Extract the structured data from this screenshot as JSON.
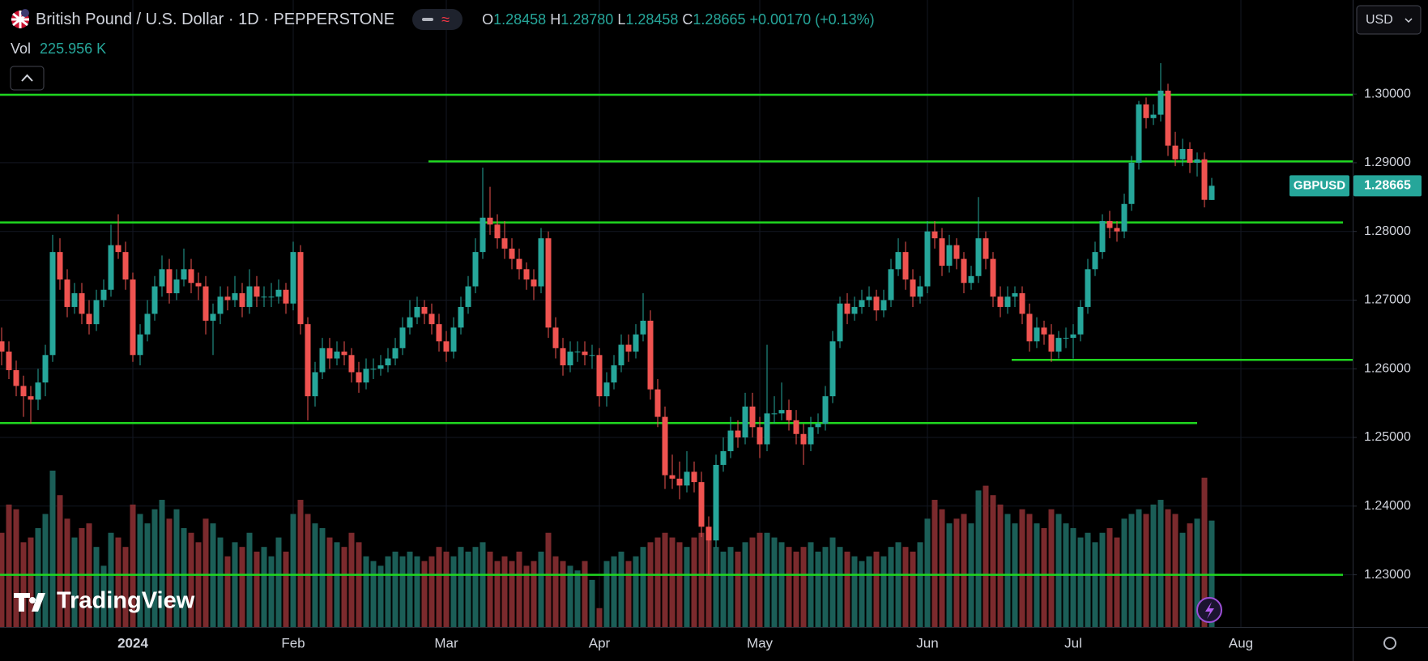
{
  "header": {
    "symbol": "British Pound / U.S. Dollar · 1D · PEPPERSTONE",
    "open_key": "O",
    "open": "1.28458",
    "high_key": "H",
    "high": "1.28780",
    "low_key": "L",
    "low": "1.28458",
    "close_key": "C",
    "close": "1.28665",
    "change": "+0.00170 (+0.13%)",
    "vol_key": "Vol",
    "currency": "USD",
    "ticker": "GBPUSD",
    "brand": "TradingView"
  },
  "chart_data": {
    "type": "candlestick",
    "up_color": "#26a69a",
    "down_color": "#ef5350",
    "volume_up_color": "#1b5e57",
    "volume_down_color": "#7b2a2d",
    "level_color": "#1fd61f",
    "grid": true,
    "ylim": [
      1.2224,
      1.3137
    ],
    "yticks": [
      {
        "value": 1.23,
        "label": "1.23000"
      },
      {
        "value": 1.24,
        "label": "1.24000"
      },
      {
        "value": 1.25,
        "label": "1.25000"
      },
      {
        "value": 1.26,
        "label": "1.26000"
      },
      {
        "value": 1.27,
        "label": "1.27000"
      },
      {
        "value": 1.28,
        "label": "1.28000"
      },
      {
        "value": 1.29,
        "label": "1.29000"
      },
      {
        "value": 1.3,
        "label": "1.30000"
      }
    ],
    "xticks": [
      {
        "value": 18,
        "label": "2024"
      },
      {
        "value": 40,
        "label": "Feb"
      },
      {
        "value": 61,
        "label": "Mar"
      },
      {
        "value": 82,
        "label": "Apr"
      },
      {
        "value": 104,
        "label": "May"
      },
      {
        "value": 127,
        "label": "Jun"
      },
      {
        "value": 147,
        "label": "Jul"
      },
      {
        "value": 170,
        "label": "Aug"
      }
    ],
    "volume_label": "225.956 K",
    "levels": [
      {
        "value": 1.2999,
        "from": 0,
        "to": 186
      },
      {
        "value": 1.2902,
        "from": 59,
        "to": 186
      },
      {
        "value": 1.2813,
        "from": 0,
        "to": 184
      },
      {
        "value": 1.2613,
        "from": 139,
        "to": 186
      },
      {
        "value": 1.2521,
        "from": 0,
        "to": 164
      },
      {
        "value": 1.23,
        "from": 0,
        "to": 184
      }
    ],
    "candles": [
      [
        1.264,
        1.266,
        1.2605,
        1.2625,
        200
      ],
      [
        1.2625,
        1.264,
        1.2585,
        1.2598,
        260
      ],
      [
        1.2598,
        1.2612,
        1.256,
        1.2575,
        250
      ],
      [
        1.2575,
        1.259,
        1.253,
        1.256,
        180
      ],
      [
        1.256,
        1.2575,
        1.252,
        1.2555,
        190
      ],
      [
        1.2555,
        1.26,
        1.254,
        1.258,
        210
      ],
      [
        1.258,
        1.2635,
        1.256,
        1.262,
        240
      ],
      [
        1.262,
        1.2795,
        1.261,
        1.277,
        332
      ],
      [
        1.277,
        1.279,
        1.2715,
        1.273,
        280
      ],
      [
        1.273,
        1.2745,
        1.2675,
        1.269,
        230
      ],
      [
        1.269,
        1.2725,
        1.268,
        1.271,
        190
      ],
      [
        1.271,
        1.2725,
        1.2665,
        1.268,
        210
      ],
      [
        1.268,
        1.27,
        1.265,
        1.2665,
        220
      ],
      [
        1.2665,
        1.2715,
        1.2655,
        1.27,
        170
      ],
      [
        1.27,
        1.273,
        1.269,
        1.2715,
        130
      ],
      [
        1.2715,
        1.281,
        1.2705,
        1.278,
        200
      ],
      [
        1.278,
        1.2825,
        1.276,
        1.277,
        190
      ],
      [
        1.277,
        1.2785,
        1.2715,
        1.273,
        170
      ],
      [
        1.273,
        1.274,
        1.261,
        1.262,
        260
      ],
      [
        1.262,
        1.2665,
        1.2605,
        1.265,
        240
      ],
      [
        1.265,
        1.27,
        1.264,
        1.268,
        220
      ],
      [
        1.268,
        1.2735,
        1.267,
        1.272,
        250
      ],
      [
        1.272,
        1.2765,
        1.2705,
        1.2745,
        270
      ],
      [
        1.2745,
        1.276,
        1.2695,
        1.271,
        230
      ],
      [
        1.271,
        1.2745,
        1.27,
        1.273,
        250
      ],
      [
        1.273,
        1.2775,
        1.272,
        1.2745,
        210
      ],
      [
        1.2745,
        1.276,
        1.271,
        1.2725,
        200
      ],
      [
        1.2725,
        1.274,
        1.27,
        1.272,
        180
      ],
      [
        1.272,
        1.2735,
        1.265,
        1.267,
        230
      ],
      [
        1.267,
        1.2695,
        1.262,
        1.268,
        220
      ],
      [
        1.268,
        1.272,
        1.2665,
        1.2705,
        190
      ],
      [
        1.2705,
        1.272,
        1.2685,
        1.27,
        150
      ],
      [
        1.27,
        1.2735,
        1.269,
        1.271,
        180
      ],
      [
        1.271,
        1.2725,
        1.2675,
        1.269,
        170
      ],
      [
        1.269,
        1.2745,
        1.268,
        1.272,
        200
      ],
      [
        1.272,
        1.2735,
        1.269,
        1.2705,
        160
      ],
      [
        1.2705,
        1.272,
        1.269,
        1.2705,
        170
      ],
      [
        1.2705,
        1.2725,
        1.269,
        1.2705,
        150
      ],
      [
        1.2705,
        1.273,
        1.2695,
        1.2715,
        190
      ],
      [
        1.2715,
        1.2725,
        1.268,
        1.2695,
        160
      ],
      [
        1.2695,
        1.2785,
        1.2685,
        1.277,
        240
      ],
      [
        1.277,
        1.278,
        1.265,
        1.2665,
        270
      ],
      [
        1.2665,
        1.2675,
        1.2525,
        1.256,
        240
      ],
      [
        1.256,
        1.261,
        1.2545,
        1.2595,
        220
      ],
      [
        1.2595,
        1.2645,
        1.2585,
        1.263,
        210
      ],
      [
        1.263,
        1.2645,
        1.26,
        1.2615,
        190
      ],
      [
        1.2615,
        1.264,
        1.2605,
        1.2625,
        180
      ],
      [
        1.2625,
        1.264,
        1.2605,
        1.262,
        170
      ],
      [
        1.262,
        1.263,
        1.258,
        1.2595,
        200
      ],
      [
        1.2595,
        1.261,
        1.2565,
        1.258,
        180
      ],
      [
        1.258,
        1.2615,
        1.257,
        1.26,
        150
      ],
      [
        1.26,
        1.2615,
        1.2585,
        1.26,
        140
      ],
      [
        1.26,
        1.262,
        1.259,
        1.2605,
        130
      ],
      [
        1.2605,
        1.263,
        1.2595,
        1.2615,
        150
      ],
      [
        1.2615,
        1.2645,
        1.2605,
        1.263,
        160
      ],
      [
        1.263,
        1.2675,
        1.262,
        1.266,
        150
      ],
      [
        1.266,
        1.27,
        1.265,
        1.2675,
        160
      ],
      [
        1.2675,
        1.2705,
        1.2665,
        1.269,
        150
      ],
      [
        1.269,
        1.27,
        1.2665,
        1.268,
        140
      ],
      [
        1.268,
        1.2695,
        1.265,
        1.2665,
        150
      ],
      [
        1.2665,
        1.268,
        1.2625,
        1.264,
        170
      ],
      [
        1.264,
        1.2655,
        1.261,
        1.2625,
        160
      ],
      [
        1.2625,
        1.2675,
        1.2615,
        1.266,
        150
      ],
      [
        1.266,
        1.2705,
        1.265,
        1.269,
        170
      ],
      [
        1.269,
        1.2735,
        1.268,
        1.272,
        160
      ],
      [
        1.272,
        1.279,
        1.271,
        1.277,
        170
      ],
      [
        1.277,
        1.2893,
        1.276,
        1.282,
        180
      ],
      [
        1.282,
        1.2865,
        1.2795,
        1.281,
        160
      ],
      [
        1.281,
        1.2825,
        1.2775,
        1.279,
        140
      ],
      [
        1.279,
        1.2815,
        1.276,
        1.2775,
        150
      ],
      [
        1.2775,
        1.279,
        1.2745,
        1.276,
        140
      ],
      [
        1.276,
        1.2775,
        1.273,
        1.2745,
        160
      ],
      [
        1.2745,
        1.2755,
        1.2715,
        1.273,
        130
      ],
      [
        1.273,
        1.2745,
        1.27,
        1.272,
        140
      ],
      [
        1.272,
        1.2805,
        1.271,
        1.279,
        160
      ],
      [
        1.279,
        1.28,
        1.2645,
        1.266,
        200
      ],
      [
        1.266,
        1.2675,
        1.2615,
        1.263,
        150
      ],
      [
        1.263,
        1.2645,
        1.259,
        1.2605,
        140
      ],
      [
        1.2605,
        1.264,
        1.2595,
        1.2625,
        130
      ],
      [
        1.2625,
        1.264,
        1.261,
        1.2625,
        120
      ],
      [
        1.2625,
        1.264,
        1.2605,
        1.262,
        140
      ],
      [
        1.262,
        1.2635,
        1.26,
        1.262,
        100
      ],
      [
        1.262,
        1.263,
        1.2545,
        1.256,
        40
      ],
      [
        1.256,
        1.2595,
        1.2545,
        1.258,
        140
      ],
      [
        1.258,
        1.262,
        1.257,
        1.2605,
        150
      ],
      [
        1.2605,
        1.265,
        1.2595,
        1.2635,
        160
      ],
      [
        1.2635,
        1.265,
        1.261,
        1.2625,
        140
      ],
      [
        1.2625,
        1.2665,
        1.2615,
        1.265,
        150
      ],
      [
        1.265,
        1.271,
        1.264,
        1.267,
        170
      ],
      [
        1.267,
        1.2685,
        1.2555,
        1.257,
        180
      ],
      [
        1.257,
        1.2585,
        1.2515,
        1.253,
        190
      ],
      [
        1.253,
        1.2545,
        1.2425,
        1.2445,
        200
      ],
      [
        1.2445,
        1.2475,
        1.2425,
        1.244,
        190
      ],
      [
        1.244,
        1.2465,
        1.241,
        1.243,
        180
      ],
      [
        1.243,
        1.248,
        1.242,
        1.245,
        170
      ],
      [
        1.245,
        1.2465,
        1.242,
        1.2435,
        190
      ],
      [
        1.2435,
        1.245,
        1.2355,
        1.237,
        200
      ],
      [
        1.237,
        1.2385,
        1.23,
        1.235,
        210
      ],
      [
        1.235,
        1.2475,
        1.234,
        1.246,
        170
      ],
      [
        1.246,
        1.25,
        1.245,
        1.248,
        160
      ],
      [
        1.248,
        1.253,
        1.247,
        1.251,
        170
      ],
      [
        1.251,
        1.2525,
        1.2485,
        1.25,
        160
      ],
      [
        1.25,
        1.2565,
        1.249,
        1.2545,
        180
      ],
      [
        1.2545,
        1.2565,
        1.25,
        1.2515,
        190
      ],
      [
        1.2515,
        1.253,
        1.247,
        1.249,
        200
      ],
      [
        1.249,
        1.2635,
        1.248,
        1.2535,
        200
      ],
      [
        1.2535,
        1.256,
        1.252,
        1.2535,
        190
      ],
      [
        1.2535,
        1.258,
        1.2525,
        1.254,
        180
      ],
      [
        1.254,
        1.2555,
        1.251,
        1.2525,
        170
      ],
      [
        1.2525,
        1.254,
        1.249,
        1.2505,
        160
      ],
      [
        1.2505,
        1.252,
        1.246,
        1.249,
        170
      ],
      [
        1.249,
        1.253,
        1.248,
        1.2515,
        180
      ],
      [
        1.2515,
        1.2535,
        1.2505,
        1.252,
        160
      ],
      [
        1.252,
        1.2575,
        1.251,
        1.256,
        170
      ],
      [
        1.256,
        1.2655,
        1.255,
        1.264,
        190
      ],
      [
        1.264,
        1.2705,
        1.263,
        1.2695,
        170
      ],
      [
        1.2695,
        1.271,
        1.2665,
        1.268,
        160
      ],
      [
        1.268,
        1.2705,
        1.267,
        1.269,
        150
      ],
      [
        1.269,
        1.2715,
        1.268,
        1.27,
        140
      ],
      [
        1.27,
        1.272,
        1.269,
        1.2705,
        150
      ],
      [
        1.2705,
        1.2715,
        1.267,
        1.2685,
        160
      ],
      [
        1.2685,
        1.2715,
        1.2675,
        1.27,
        150
      ],
      [
        1.27,
        1.276,
        1.269,
        1.2745,
        170
      ],
      [
        1.2745,
        1.279,
        1.2735,
        1.277,
        180
      ],
      [
        1.277,
        1.2785,
        1.2715,
        1.273,
        170
      ],
      [
        1.273,
        1.2745,
        1.269,
        1.2705,
        160
      ],
      [
        1.2705,
        1.2735,
        1.2695,
        1.272,
        180
      ],
      [
        1.272,
        1.2815,
        1.271,
        1.28,
        230
      ],
      [
        1.28,
        1.2815,
        1.2775,
        1.279,
        270
      ],
      [
        1.279,
        1.2805,
        1.2735,
        1.275,
        250
      ],
      [
        1.275,
        1.2795,
        1.274,
        1.278,
        220
      ],
      [
        1.278,
        1.279,
        1.2745,
        1.276,
        230
      ],
      [
        1.276,
        1.277,
        1.271,
        1.2725,
        240
      ],
      [
        1.2725,
        1.275,
        1.2715,
        1.2735,
        220
      ],
      [
        1.2735,
        1.285,
        1.2725,
        1.279,
        290
      ],
      [
        1.279,
        1.28,
        1.2745,
        1.276,
        300
      ],
      [
        1.276,
        1.277,
        1.269,
        1.2705,
        280
      ],
      [
        1.2705,
        1.272,
        1.2675,
        1.269,
        260
      ],
      [
        1.269,
        1.272,
        1.268,
        1.2705,
        240
      ],
      [
        1.2705,
        1.272,
        1.269,
        1.271,
        220
      ],
      [
        1.271,
        1.272,
        1.2665,
        1.268,
        250
      ],
      [
        1.268,
        1.2695,
        1.2625,
        1.264,
        240
      ],
      [
        1.264,
        1.2675,
        1.263,
        1.266,
        220
      ],
      [
        1.266,
        1.267,
        1.2635,
        1.265,
        210
      ],
      [
        1.265,
        1.2665,
        1.261,
        1.2625,
        250
      ],
      [
        1.2625,
        1.2655,
        1.2615,
        1.2645,
        240
      ],
      [
        1.2645,
        1.266,
        1.263,
        1.2645,
        220
      ],
      [
        1.2645,
        1.2665,
        1.2615,
        1.265,
        210
      ],
      [
        1.265,
        1.27,
        1.264,
        1.269,
        190
      ],
      [
        1.269,
        1.276,
        1.268,
        1.2745,
        200
      ],
      [
        1.2745,
        1.2785,
        1.2735,
        1.277,
        180
      ],
      [
        1.277,
        1.2825,
        1.276,
        1.2815,
        200
      ],
      [
        1.2815,
        1.283,
        1.279,
        1.2805,
        210
      ],
      [
        1.2805,
        1.2815,
        1.2785,
        1.28,
        190
      ],
      [
        1.28,
        1.2855,
        1.279,
        1.284,
        230
      ],
      [
        1.284,
        1.291,
        1.283,
        1.29,
        240
      ],
      [
        1.29,
        1.299,
        1.289,
        1.2985,
        250
      ],
      [
        1.2985,
        1.2995,
        1.295,
        1.2965,
        240
      ],
      [
        1.2965,
        1.2985,
        1.2955,
        1.297,
        260
      ],
      [
        1.297,
        1.3045,
        1.296,
        1.3005,
        270
      ],
      [
        1.3005,
        1.3015,
        1.291,
        1.2925,
        250
      ],
      [
        1.2925,
        1.2945,
        1.2895,
        1.2905,
        240
      ],
      [
        1.2905,
        1.2935,
        1.2895,
        1.292,
        200
      ],
      [
        1.292,
        1.293,
        1.2885,
        1.29,
        220
      ],
      [
        1.29,
        1.2915,
        1.288,
        1.2905,
        230
      ],
      [
        1.2905,
        1.2915,
        1.2835,
        1.2846,
        317
      ],
      [
        1.28458,
        1.2878,
        1.28458,
        1.28665,
        225.956
      ]
    ]
  }
}
